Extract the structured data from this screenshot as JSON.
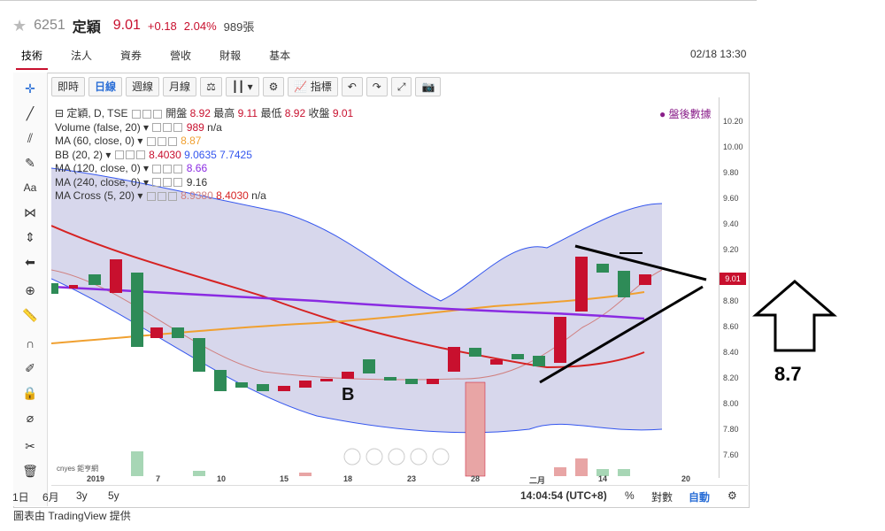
{
  "header": {
    "star": "★",
    "code": "6251",
    "name": "定穎",
    "price": "9.01",
    "change": "+0.18",
    "change_pct": "2.04%",
    "volume": "989張"
  },
  "tabs": [
    "技術",
    "法人",
    "資券",
    "營收",
    "財報",
    "基本"
  ],
  "datetime": "02/18 13:30",
  "toolbar": {
    "intraday": "即時",
    "daily": "日線",
    "weekly": "週線",
    "monthly": "月線",
    "indicators": "指標"
  },
  "legend": {
    "main": "定穎, D, TSE",
    "open_label": "開盤",
    "open": "8.92",
    "high_label": "最高",
    "high": "9.11",
    "low_label": "最低",
    "low": "8.92",
    "close_label": "收盤",
    "close": "9.01",
    "volume": "Volume (false, 20)",
    "volume_val": "989",
    "volume_na": "n/a",
    "ma60": "MA (60, close, 0)",
    "ma60_val": "8.87",
    "bb": "BB (20, 2)",
    "bb_v1": "8.4030",
    "bb_v2": "9.0635",
    "bb_v3": "7.7425",
    "ma120": "MA (120, close, 0)",
    "ma120_val": "8.66",
    "ma240": "MA (240, close, 0)",
    "ma240_val": "9.16",
    "macross": "MA Cross (5, 20)",
    "macross_v1": "8.9380",
    "macross_v2": "8.4030",
    "macross_na": "n/a"
  },
  "after_hours": "● 盤後數據",
  "yaxis": [
    "10.20",
    "10.00",
    "9.80",
    "9.60",
    "9.40",
    "9.20",
    "9.01",
    "8.80",
    "8.60",
    "8.40",
    "8.20",
    "8.00",
    "7.80",
    "7.60"
  ],
  "price_tag": "9.01",
  "xaxis": [
    "2019",
    "7",
    "10",
    "15",
    "18",
    "23",
    "28",
    "二月",
    "14",
    "20"
  ],
  "bottom": {
    "d1": "1日",
    "m6": "6月",
    "y3": "3y",
    "y5": "5y",
    "time": "14:04:54 (UTC+8)",
    "pct": "%",
    "log": "對數",
    "auto": "自動",
    "gear": "⚙"
  },
  "annotations": {
    "b_label": "B",
    "target": "8.7"
  },
  "watermark": "cnyes 鉅亨網",
  "credit": "圖表由 TradingView 提供",
  "colors": {
    "up": "#c8102e",
    "down": "#2e8b57",
    "ma60": "#f0a030",
    "ma120": "#8a2be2",
    "bb_fill": "#c9c9e6"
  }
}
